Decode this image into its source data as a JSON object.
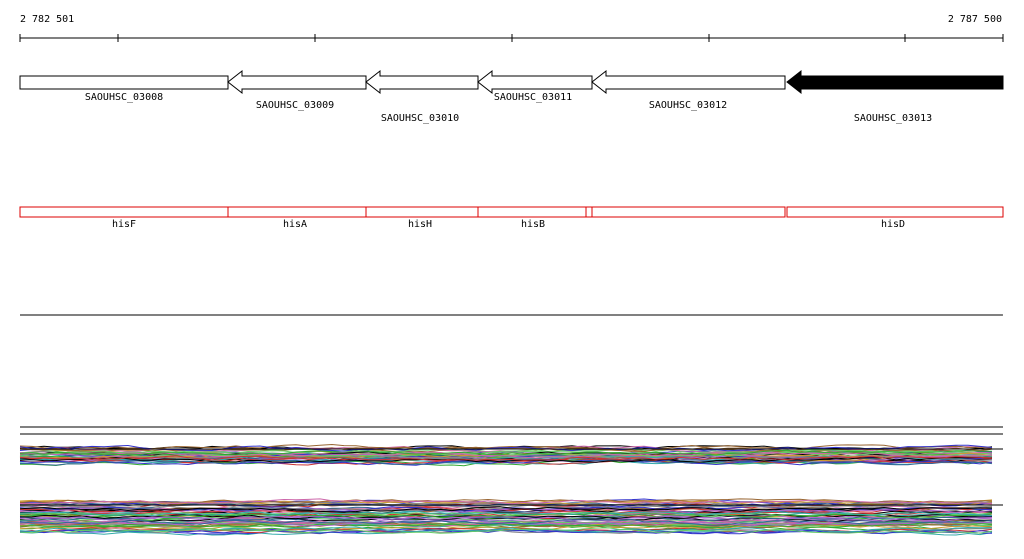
{
  "ruler": {
    "start": "2 782 501",
    "end": "2 787 500"
  },
  "genes": [
    "SAOUHSC_03008",
    "SAOUHSC_03009",
    "SAOUHSC_03010",
    "SAOUHSC_03011",
    "SAOUHSC_03012",
    "SAOUHSC_03013"
  ],
  "names": [
    "hisF",
    "hisA",
    "hisH",
    "hisB",
    "hisD"
  ]
}
